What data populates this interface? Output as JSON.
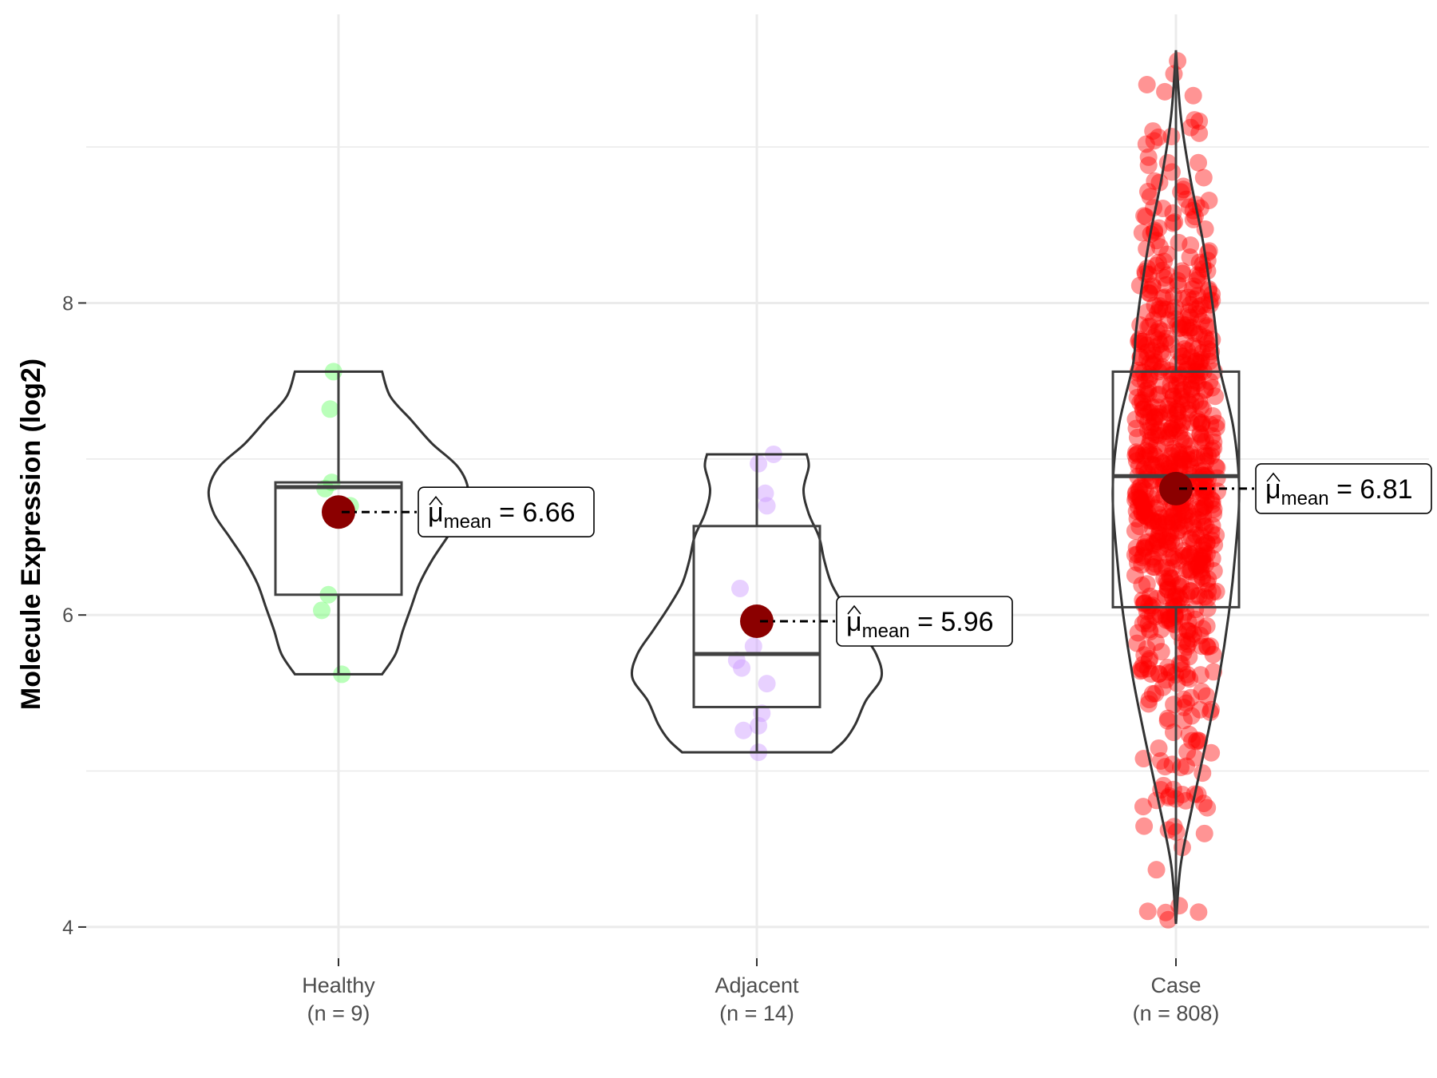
{
  "chart_data": {
    "type": "violin-box-scatter",
    "title": "",
    "xlabel": "",
    "ylabel": "Molecule Expression (log2)",
    "ylim": [
      3.8,
      9.85
    ],
    "yticks": [
      4,
      6,
      8
    ],
    "ygrid_minor": [
      5,
      7,
      9
    ],
    "mean_symbol": "μ",
    "mean_subscript": "mean",
    "mean_point_color": "#8b0000",
    "groups": [
      {
        "name": "Healthy",
        "n_label": "(n = 9)",
        "color": "#66ff66",
        "mean": 6.66,
        "mean_label": "6.66",
        "box": {
          "q1": 6.13,
          "median": 6.82,
          "q3": 6.85,
          "whisker_low": 5.62,
          "whisker_high": 7.56
        },
        "violin": {
          "y": [
            5.62,
            5.75,
            5.9,
            6.05,
            6.2,
            6.35,
            6.5,
            6.65,
            6.8,
            6.95,
            7.1,
            7.25,
            7.4,
            7.56
          ],
          "width": [
            0.42,
            0.55,
            0.62,
            0.7,
            0.78,
            0.9,
            1.05,
            1.2,
            1.25,
            1.15,
            0.9,
            0.7,
            0.5,
            0.42
          ]
        },
        "points": [
          7.56,
          7.32,
          6.85,
          6.81,
          6.7,
          6.66,
          6.13,
          6.03,
          5.62
        ],
        "jitter": [
          -0.03,
          -0.05,
          -0.04,
          -0.08,
          0.07,
          0.0,
          -0.06,
          -0.1,
          0.02
        ]
      },
      {
        "name": "Adjacent",
        "n_label": "(n = 14)",
        "color": "#cc99ff",
        "mean": 5.96,
        "mean_label": "5.96",
        "box": {
          "q1": 5.41,
          "median": 5.75,
          "q3": 6.57,
          "whisker_low": 5.12,
          "whisker_high": 7.03
        },
        "violin": {
          "y": [
            5.12,
            5.2,
            5.3,
            5.45,
            5.6,
            5.75,
            5.9,
            6.05,
            6.2,
            6.35,
            6.5,
            6.65,
            6.8,
            6.95,
            7.03
          ],
          "width": [
            0.72,
            0.85,
            0.95,
            1.05,
            1.2,
            1.15,
            1.0,
            0.85,
            0.72,
            0.65,
            0.6,
            0.5,
            0.45,
            0.5,
            0.48
          ]
        },
        "points": [
          7.03,
          6.97,
          6.78,
          6.7,
          6.17,
          5.8,
          5.71,
          5.66,
          5.56,
          5.37,
          5.29,
          5.26,
          5.12,
          5.96
        ],
        "jitter": [
          0.1,
          0.01,
          0.05,
          0.06,
          -0.1,
          -0.02,
          -0.12,
          -0.09,
          0.06,
          0.03,
          0.01,
          -0.08,
          0.01,
          0.0
        ]
      },
      {
        "name": "Case",
        "n_label": "(n = 808)",
        "color": "#ff0000",
        "mean": 6.81,
        "mean_label": "6.81",
        "box": {
          "q1": 6.05,
          "median": 6.89,
          "q3": 7.56,
          "whisker_low": 4.05,
          "whisker_high": 9.62
        },
        "violin": {
          "y": [
            4.02,
            4.4,
            4.8,
            5.2,
            5.6,
            6.0,
            6.4,
            6.8,
            7.2,
            7.6,
            7.8,
            8.0,
            8.4,
            8.8,
            9.2,
            9.62
          ],
          "width": [
            0.0,
            0.05,
            0.18,
            0.32,
            0.45,
            0.55,
            0.62,
            0.66,
            0.6,
            0.45,
            0.42,
            0.38,
            0.28,
            0.15,
            0.05,
            0.0
          ]
        },
        "n_points": 808
      }
    ]
  }
}
